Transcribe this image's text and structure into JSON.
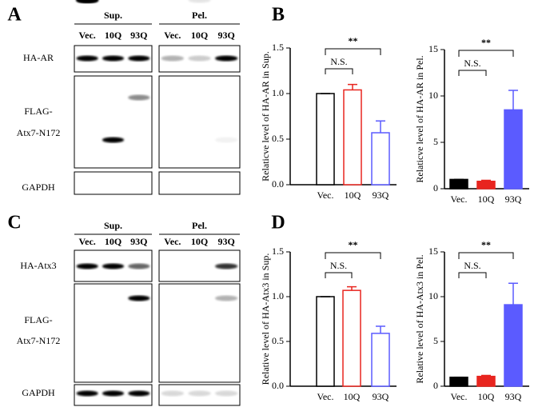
{
  "panels": [
    "A",
    "B",
    "C",
    "D"
  ],
  "blots": [
    {
      "fractions": [
        {
          "name": "Sup.",
          "lanes": [
            "Vec.",
            "10Q",
            "93Q"
          ]
        },
        {
          "name": "Pel.",
          "lanes": [
            "Vec.",
            "10Q",
            "93Q"
          ]
        }
      ],
      "rows": [
        [
          "HA-AR"
        ],
        [
          "FLAG-",
          "Atx7-N172"
        ],
        [
          "GAPDH"
        ]
      ]
    },
    {
      "fractions": [
        {
          "name": "Sup.",
          "lanes": [
            "Vec.",
            "10Q",
            "93Q"
          ]
        },
        {
          "name": "Pel.",
          "lanes": [
            "Vec.",
            "10Q",
            "93Q"
          ]
        }
      ],
      "rows": [
        [
          "HA-Atx3"
        ],
        [
          "FLAG-",
          "Atx7-N172"
        ],
        [
          "GAPDH"
        ]
      ]
    }
  ],
  "chart_data": [
    {
      "type": "bar",
      "fill_style": "outline",
      "y_label": "Relaticve level of HA-AR in Sup.",
      "categories": [
        "Vec.",
        "10Q",
        "93Q"
      ],
      "colors": [
        "#000000",
        "#e8251f",
        "#5b5bff"
      ],
      "values": [
        1.0,
        1.04,
        0.57
      ],
      "errors": [
        0,
        0.06,
        0.13
      ],
      "ylim": [
        0,
        1.5
      ],
      "yticks": [
        {
          "value": 0,
          "label": "0.0"
        },
        {
          "value": 0.5,
          "label": "0.5"
        },
        {
          "value": 1,
          "label": "1.0"
        },
        {
          "value": 1.5,
          "label": "1.5"
        }
      ],
      "annotations": [
        "**",
        "N.S."
      ]
    },
    {
      "type": "bar",
      "fill_style": "solid",
      "y_label": "Relaticve level of HA-AR in Pel.",
      "categories": [
        "Vec.",
        "10Q",
        "93Q"
      ],
      "colors": [
        "#000000",
        "#e8251f",
        "#5b5bff"
      ],
      "values": [
        1.0,
        0.8,
        8.5
      ],
      "errors": [
        0,
        0.1,
        2.1
      ],
      "ylim": [
        0,
        15
      ],
      "yticks": [
        0,
        5,
        10,
        15
      ],
      "annotations": [
        "**",
        "N.S."
      ]
    },
    {
      "type": "bar",
      "fill_style": "outline",
      "y_label": "Relative level of HA-Atx3 in Sup.",
      "categories": [
        "Vec.",
        "10Q",
        "93Q"
      ],
      "colors": [
        "#000000",
        "#e8251f",
        "#5b5bff"
      ],
      "values": [
        1.0,
        1.07,
        0.59
      ],
      "errors": [
        0,
        0.04,
        0.08
      ],
      "ylim": [
        0,
        1.5
      ],
      "yticks": [
        {
          "value": 0,
          "label": "0.0"
        },
        {
          "value": 0.5,
          "label": "0.5"
        },
        {
          "value": 1,
          "label": "1.0"
        },
        {
          "value": 1.5,
          "label": "1.5"
        }
      ],
      "annotations": [
        "**",
        "N.S."
      ]
    },
    {
      "type": "bar",
      "fill_style": "solid",
      "y_label": "Relative level of HA-Atx3 in Pel.",
      "categories": [
        "Vec.",
        "10Q",
        "93Q"
      ],
      "colors": [
        "#000000",
        "#e8251f",
        "#5b5bff"
      ],
      "values": [
        1.0,
        1.1,
        9.1
      ],
      "errors": [
        0,
        0.1,
        2.4
      ],
      "ylim": [
        0,
        15
      ],
      "yticks": [
        0,
        5,
        10,
        15
      ],
      "annotations": [
        "**",
        "N.S."
      ]
    }
  ]
}
